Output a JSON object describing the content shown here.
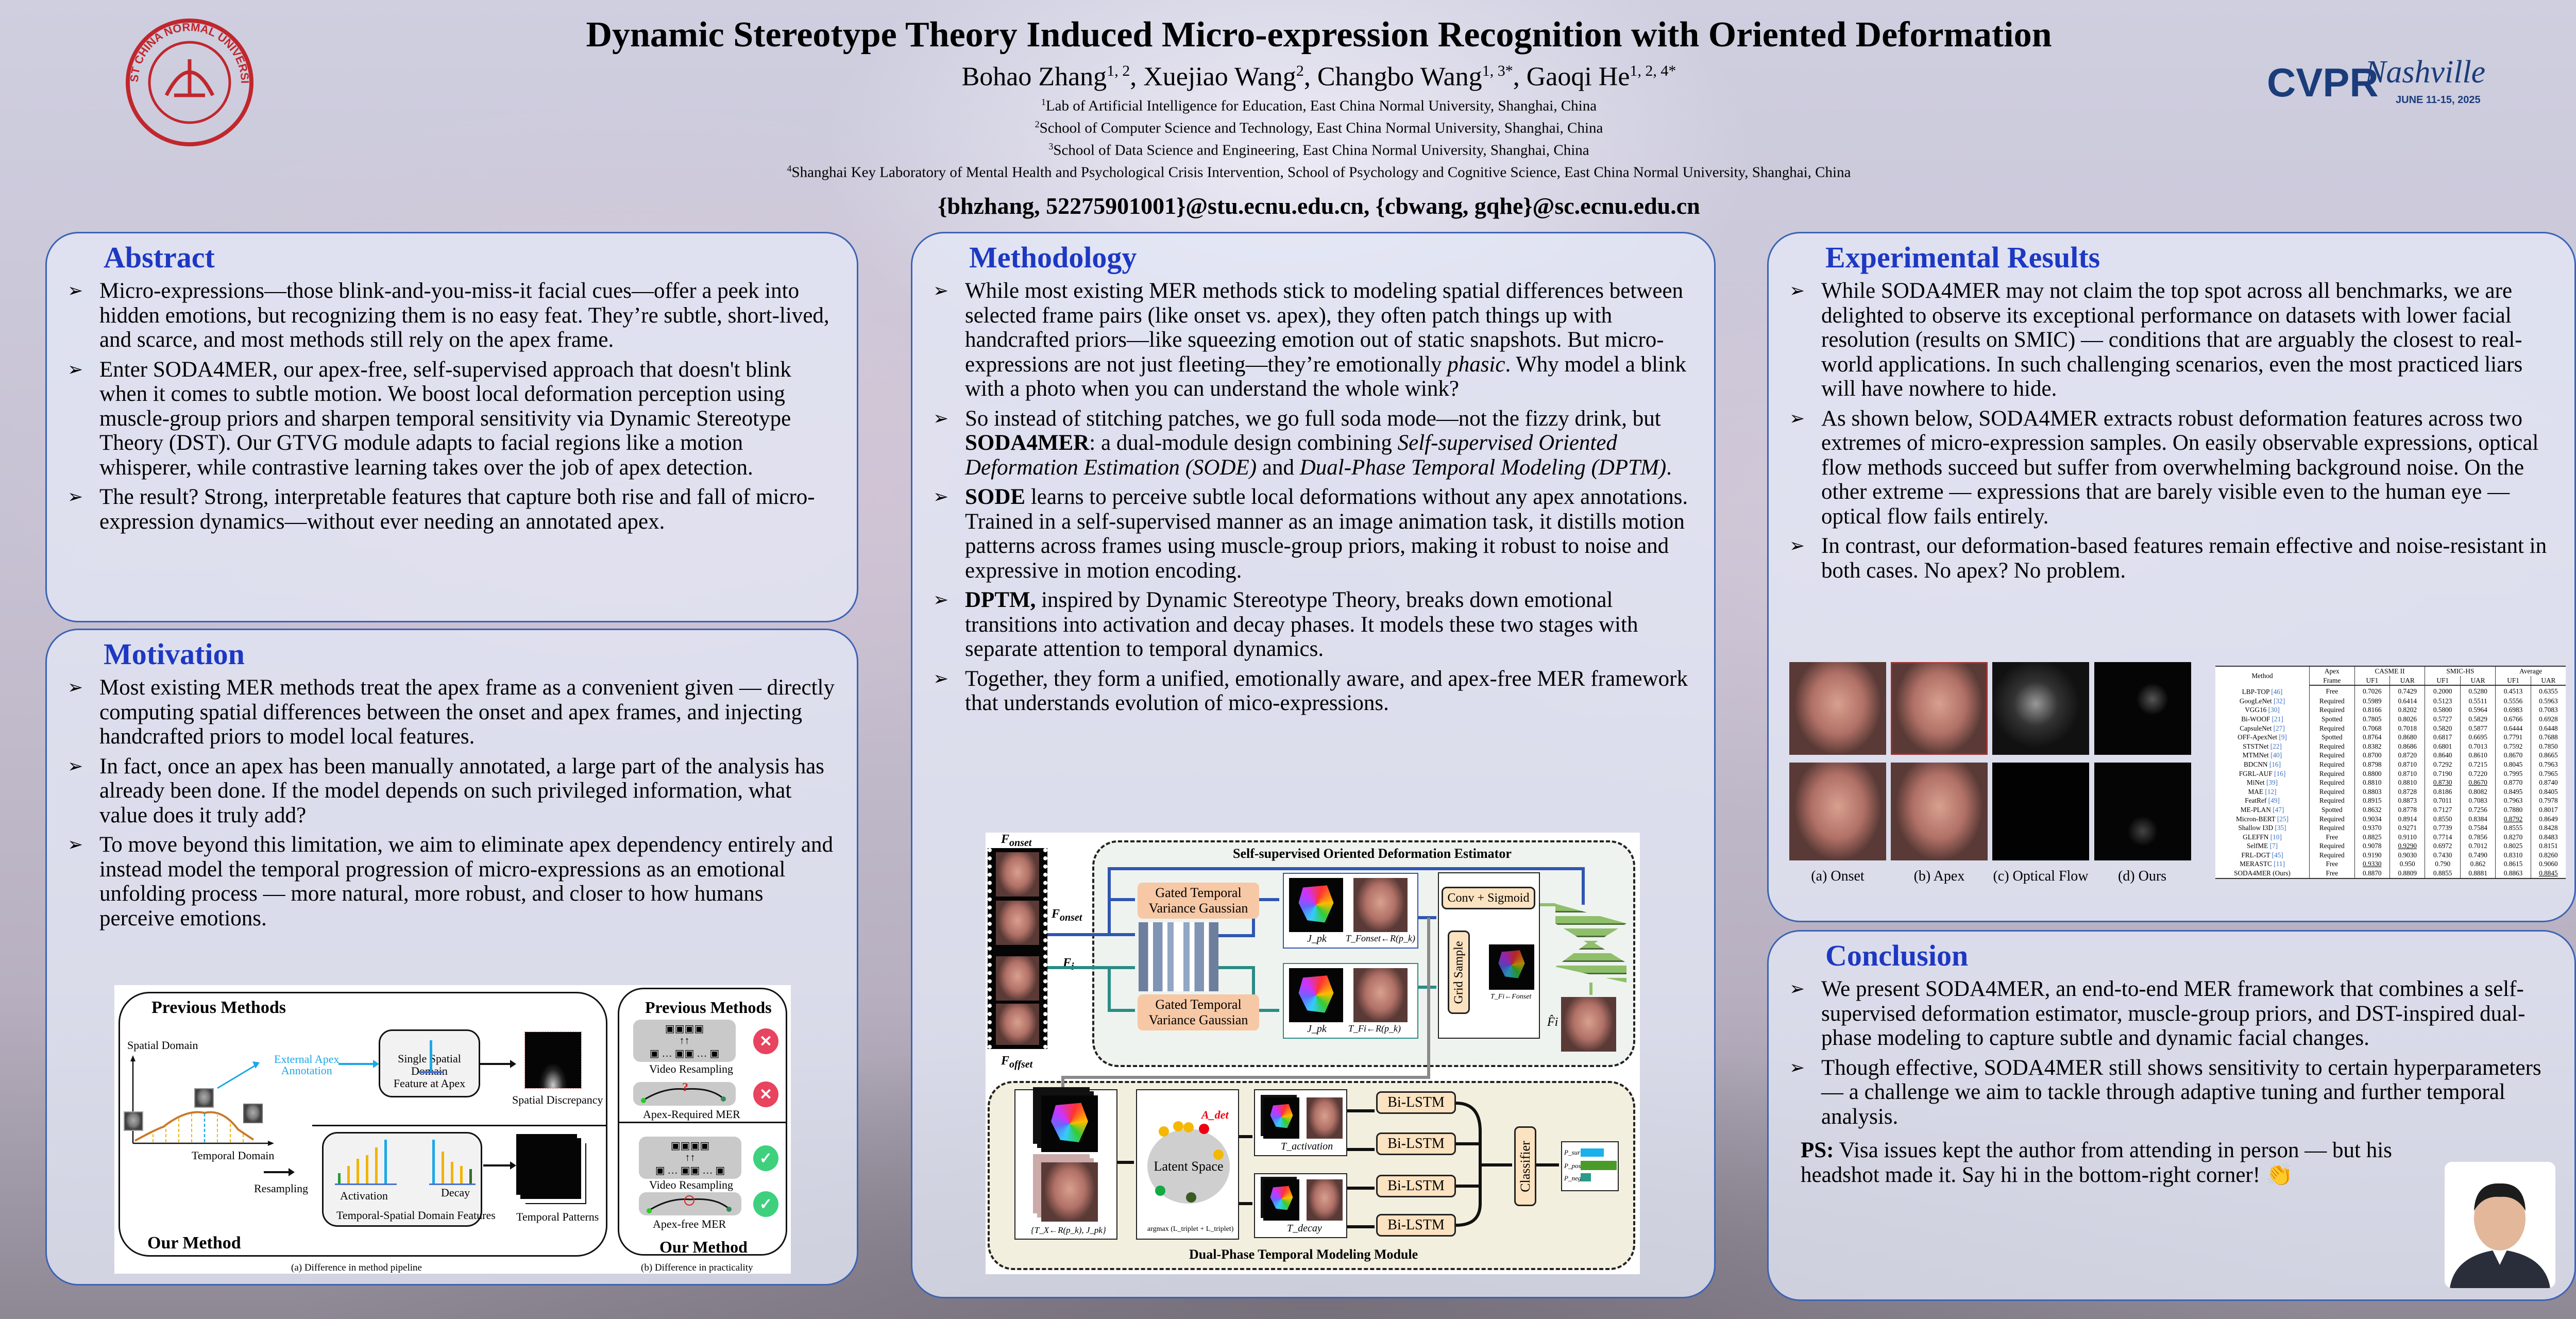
{
  "header": {
    "title": "Dynamic Stereotype Theory Induced Micro-expression Recognition with Oriented Deformation",
    "authors": [
      {
        "name": "Bohao Zhang",
        "sup": "1, 2"
      },
      {
        "name": "Xuejiao Wang",
        "sup": "2"
      },
      {
        "name": "Changbo Wang",
        "sup": "1, 3*"
      },
      {
        "name": "Gaoqi He",
        "sup": "1, 2, 4*"
      }
    ],
    "affiliations": [
      {
        "sup": "1",
        "text": "Lab of Artificial Intelligence for Education, East China Normal University, Shanghai, China"
      },
      {
        "sup": "2",
        "text": "School of Computer Science and Technology, East China Normal University, Shanghai, China"
      },
      {
        "sup": "3",
        "text": "School of Data Science and Engineering, East China Normal University, Shanghai, China"
      },
      {
        "sup": "4",
        "text": "Shanghai Key Laboratory of Mental Health and Psychological Crisis Intervention, School of Psychology and Cognitive Science, East China Normal University, Shanghai, China"
      }
    ],
    "emails": "{bhzhang, 52275901001}@stu.ecnu.edu.cn, {cbwang, gqhe}@sc.ecnu.edu.cn",
    "logo_left": {
      "name": "ecnu-seal-logo",
      "text": "EAST CHINA NORMAL UNIVERSITY",
      "color": "#c0272d"
    },
    "logo_right": {
      "name": "cvpr-nashville-logo",
      "text1": "CVPR",
      "text2": "Nashville",
      "dates": "JUNE 11-15, 2025",
      "color": "#1b3c7a"
    }
  },
  "abstract": {
    "heading": "Abstract",
    "bullets": [
      [
        {
          "t": "Micro-expressions—those blink-and-you-miss-it facial cues—offer a peek into hidden emotions, but recognizing them is no easy feat. They’re subtle, short-lived, and scarce, and most methods still rely on the apex frame."
        }
      ],
      [
        {
          "t": "Enter SODA4MER, our apex-free, self-supervised approach that doesn't blink when it comes to subtle motion. We boost local deformation perception using muscle-group priors and sharpen temporal sensitivity via Dynamic Stereotype Theory (DST). Our GTVG module adapts to facial regions like a motion whisperer, while contrastive learning takes over the job of apex detection."
        }
      ],
      [
        {
          "t": "The result? Strong, interpretable features that capture both rise and fall of micro-expression dynamics—without ever needing an annotated apex."
        }
      ]
    ]
  },
  "motivation": {
    "heading": "Motivation",
    "bullets": [
      [
        {
          "t": "Most existing MER methods treat the apex frame as a convenient given — directly computing spatial differences between the onset and apex frames, and injecting handcrafted priors to model local features."
        }
      ],
      [
        {
          "t": "In fact, once an apex has been manually annotated, a large part of the analysis has already been done. If the model depends on such privileged information, what value does it truly add?"
        }
      ],
      [
        {
          "t": "To move beyond this limitation, we aim to eliminate apex dependency entirely and instead model the temporal progression of micro-expressions as an emotional unfolding process — more natural, more robust, and closer to how humans perceive emotions."
        }
      ]
    ],
    "figure": {
      "previous": "Previous Methods",
      "ours": "Our Method",
      "spatial_domain": "Spatial Domain",
      "temporal_domain": "Temporal Domain",
      "external_apex": "External Apex",
      "annotation": "Annotation",
      "single_domain": "Single Spatial Domain",
      "feature_apex": "Feature at Apex",
      "spatial_discrepancy": "Spatial Discrepancy",
      "resampling": "Resampling",
      "activation": "Activation",
      "decay": "Decay",
      "ts_features": "Temporal-Spatial Domain Features",
      "temporal_patterns": "Temporal Patterns",
      "video_resampling": "Video Resampling",
      "apex_required": "Apex-Required MER",
      "apex_free": "Apex-free MER",
      "caption_a": "(a) Difference in method pipeline",
      "caption_b": "(b) Difference in practicality",
      "accent": "#1aa8e8"
    }
  },
  "methodology": {
    "heading": "Methodology",
    "bullets": [
      [
        {
          "t": "While most existing MER methods stick to modeling spatial differences between selected frame pairs (like onset vs. apex), they often patch things up with handcrafted priors—like squeezing emotion out of static snapshots. But micro-expressions are not just fleeting—they’re emotionally "
        },
        {
          "t": "phasic",
          "s": "i"
        },
        {
          "t": ". Why model a blink with a photo when you can understand the whole wink?"
        }
      ],
      [
        {
          "t": "So instead of stitching patches, we go full soda mode—not the fizzy drink, but "
        },
        {
          "t": "SODA4MER",
          "s": "b"
        },
        {
          "t": ": a dual-module design combining "
        },
        {
          "t": "Self-supervised Oriented Deformation Estimation (SODE)",
          "s": "i"
        },
        {
          "t": " and "
        },
        {
          "t": "Dual-Phase Temporal Modeling (DPTM)",
          "s": "i"
        },
        {
          "t": "."
        }
      ],
      [
        {
          "t": "SODE",
          "s": "b"
        },
        {
          "t": " learns to perceive subtle local deformations without any apex annotations. Trained in a self-supervised manner as an image animation task, it distills motion patterns across frames using muscle-group priors, making it robust to noise and expressive in motion encoding."
        }
      ],
      [
        {
          "t": "DPTM,",
          "s": "b"
        },
        {
          "t": " inspired by Dynamic Stereotype Theory, breaks down emotional transitions into activation and decay phases. It models these two stages with separate attention to temporal dynamics."
        }
      ],
      [
        {
          "t": "Together, they form a unified, emotionally aware, and apex-free MER framework that understands evolution of mico-expressions."
        }
      ]
    ],
    "figure": {
      "sode_title": "Self-supervised Oriented Deformation Estimator",
      "dptm_title": "Dual-Phase Temporal Modeling Module",
      "f_onset": "F",
      "f_onset_sub": "onset",
      "f_i": "F",
      "f_i_sub": "i",
      "f_offset": "F",
      "f_offset_sub": "offset",
      "gtvg": "Gated Temporal Variance Gaussian",
      "j_pk": "J_pk",
      "t_onset": "T_Fonset←R(p_k)",
      "t_i": "T_Fi←R(p_k)",
      "conv_sigmoid": "Conv + Sigmoid",
      "grid_sample": "Grid Sample",
      "t_fi_fonset": "T_Fi←Fonset",
      "f_hat": "F̂i",
      "latent_space": "Latent Space",
      "a_det": "A_det",
      "stack_label": "{T_X←R(p_k), J_pk}",
      "argmax": "argmax (L_triplet + L_triplet)",
      "t_activation": "T_activation",
      "t_decay": "T_decay",
      "bilstm": "Bi-LSTM",
      "classifier": "Classifier",
      "p_sur": "P_sur",
      "p_pos": "P_pos",
      "p_neg": "P_neg",
      "colors": {
        "blue": "#2f56b0",
        "teal": "#2a8c85",
        "gray": "#8a8a8a",
        "green_dec": "#8fbf6a"
      }
    }
  },
  "results": {
    "heading": "Experimental Results",
    "bullets": [
      [
        {
          "t": "While SODA4MER may not claim the top spot across all benchmarks, we are delighted to observe its exceptional performance on datasets with lower facial resolution (results on SMIC) — conditions that are arguably the closest to real-world applications. In such challenging scenarios, even the most practiced liars will have nowhere to hide."
        }
      ],
      [
        {
          "t": "As shown below, SODA4MER extracts robust deformation features across two extremes of micro-expression samples. On easily observable expressions, optical flow methods succeed but suffer from overwhelming background noise. On the other extreme — expressions that are barely visible even to the human eye — optical flow fails entirely."
        }
      ],
      [
        {
          "t": "In contrast, our deformation-based features remain effective and noise-resistant in both cases. No apex? No problem."
        }
      ]
    ],
    "faces_captions": [
      "(a) Onset",
      "(b) Apex",
      "(c) Optical Flow",
      "(d) Ours"
    ],
    "table": {
      "header_top": [
        "Method",
        "Apex",
        "CASME II",
        "SMIC-HS",
        "Average"
      ],
      "apex_sub": "Frame",
      "metrics": [
        "UF1",
        "UAR",
        "UF1",
        "UAR",
        "UF1",
        "UAR"
      ],
      "rows": [
        {
          "method": "LBP-TOP",
          "ref": "[46]",
          "apex": "Free",
          "v": [
            "0.7026",
            "0.7429",
            "0.2000",
            "0.5280",
            "0.4513",
            "0.6355"
          ]
        },
        {
          "method": "GoogLeNet",
          "ref": "[32]",
          "apex": "Required",
          "v": [
            "0.5989",
            "0.6414",
            "0.5123",
            "0.5511",
            "0.5556",
            "0.5963"
          ]
        },
        {
          "method": "VGG16",
          "ref": "[30]",
          "apex": "Required",
          "v": [
            "0.8166",
            "0.8202",
            "0.5800",
            "0.5964",
            "0.6983",
            "0.7083"
          ]
        },
        {
          "method": "Bi-WOOF",
          "ref": "[21]",
          "apex": "Spotted",
          "v": [
            "0.7805",
            "0.8026",
            "0.5727",
            "0.5829",
            "0.6766",
            "0.6928"
          ]
        },
        {
          "method": "CapsuleNet",
          "ref": "[27]",
          "apex": "Required",
          "v": [
            "0.7068",
            "0.7018",
            "0.5820",
            "0.5877",
            "0.6444",
            "0.6448"
          ]
        },
        {
          "method": "OFF-ApexNet",
          "ref": "[9]",
          "apex": "Spotted",
          "v": [
            "0.8764",
            "0.8680",
            "0.6817",
            "0.6695",
            "0.7791",
            "0.7688"
          ]
        },
        {
          "method": "STSTNet",
          "ref": "[22]",
          "apex": "Required",
          "v": [
            "0.8382",
            "0.8686",
            "0.6801",
            "0.7013",
            "0.7592",
            "0.7850"
          ]
        },
        {
          "method": "MTMNet",
          "ref": "[40]",
          "apex": "Required",
          "v": [
            "0.8700",
            "0.8720",
            "0.8640",
            "0.8610",
            "0.8670",
            "0.8665"
          ]
        },
        {
          "method": "BDCNN",
          "ref": "[16]",
          "apex": "Required",
          "v": [
            "0.8798",
            "0.8710",
            "0.7292",
            "0.7215",
            "0.8045",
            "0.7963"
          ]
        },
        {
          "method": "FGRL-AUF",
          "ref": "[16]",
          "apex": "Required",
          "v": [
            "0.8800",
            "0.8710",
            "0.7190",
            "0.7220",
            "0.7995",
            "0.7965"
          ]
        },
        {
          "method": "MiNet",
          "ref": "[39]",
          "apex": "Required",
          "v": [
            "0.8810",
            "0.8810",
            "0.8730",
            "0.8670",
            "0.8770",
            "0.8740"
          ],
          "second": [
            2,
            3
          ]
        },
        {
          "method": "MAE",
          "ref": "[12]",
          "apex": "Required",
          "v": [
            "0.8803",
            "0.8728",
            "0.8186",
            "0.8082",
            "0.8495",
            "0.8405"
          ]
        },
        {
          "method": "FeatRef",
          "ref": "[49]",
          "apex": "Required",
          "v": [
            "0.8915",
            "0.8873",
            "0.7011",
            "0.7083",
            "0.7963",
            "0.7978"
          ]
        },
        {
          "method": "ME-PLAN",
          "ref": "[47]",
          "apex": "Spotted",
          "v": [
            "0.8632",
            "0.8778",
            "0.7127",
            "0.7256",
            "0.7880",
            "0.8017"
          ]
        },
        {
          "method": "Micron-BERT",
          "ref": "[25]",
          "apex": "Required",
          "v": [
            "0.9034",
            "0.8914",
            "0.8550",
            "0.8384",
            "0.8792",
            "0.8649"
          ],
          "second": [
            4
          ]
        },
        {
          "method": "Shallow I3D",
          "ref": "[35]",
          "apex": "Required",
          "v": [
            "0.9370",
            "0.9271",
            "0.7739",
            "0.7584",
            "0.8555",
            "0.8428"
          ],
          "best": [
            0
          ]
        },
        {
          "method": "GLEFFN",
          "ref": "[10]",
          "apex": "Free",
          "v": [
            "0.8825",
            "0.9110",
            "0.7714",
            "0.7856",
            "0.8270",
            "0.8483"
          ]
        },
        {
          "method": "SelfME",
          "ref": "[7]",
          "apex": "Required",
          "v": [
            "0.9078",
            "0.9290",
            "0.6972",
            "0.7012",
            "0.8025",
            "0.8151"
          ],
          "second": [
            1
          ]
        },
        {
          "method": "FRL-DGT",
          "ref": "[45]",
          "apex": "Required",
          "v": [
            "0.9190",
            "0.9030",
            "0.7430",
            "0.7490",
            "0.8310",
            "0.8260"
          ]
        },
        {
          "method": "MERASTC",
          "ref": "[11]",
          "apex": "Free",
          "v": [
            "0.9330",
            "0.950",
            "0.790",
            "0.862",
            "0.8615",
            "0.9060"
          ],
          "best": [
            1,
            5
          ],
          "second": [
            0
          ]
        },
        {
          "method": "SODA4MER (Ours)",
          "ref": "",
          "apex": "Free",
          "v": [
            "0.8870",
            "0.8809",
            "0.8855",
            "0.8881",
            "0.8863",
            "0.8845"
          ],
          "best": [
            2,
            3,
            4
          ],
          "second": [
            5
          ],
          "ours": true
        }
      ]
    }
  },
  "conclusion": {
    "heading": "Conclusion",
    "bullets": [
      [
        {
          "t": "We present SODA4MER, an end-to-end MER framework that combines a self-supervised deformation estimator, muscle-group priors, and DST-inspired dual-phase modeling to capture subtle and dynamic facial changes."
        }
      ],
      [
        {
          "t": "Though effective, SODA4MER still shows sensitivity to certain hyperparameters — a challenge we aim to tackle through adaptive tuning and further temporal analysis."
        }
      ]
    ],
    "ps_label": "PS:",
    "ps_text": " Visa issues kept the author from attending in person — but his headshot made it. Say hi in the bottom-right corner! 👏"
  },
  "colors": {
    "heading": "#1d38c2",
    "panel_border": "#3c63b4",
    "reject": "#e8435f",
    "accept": "#3fd07e"
  }
}
